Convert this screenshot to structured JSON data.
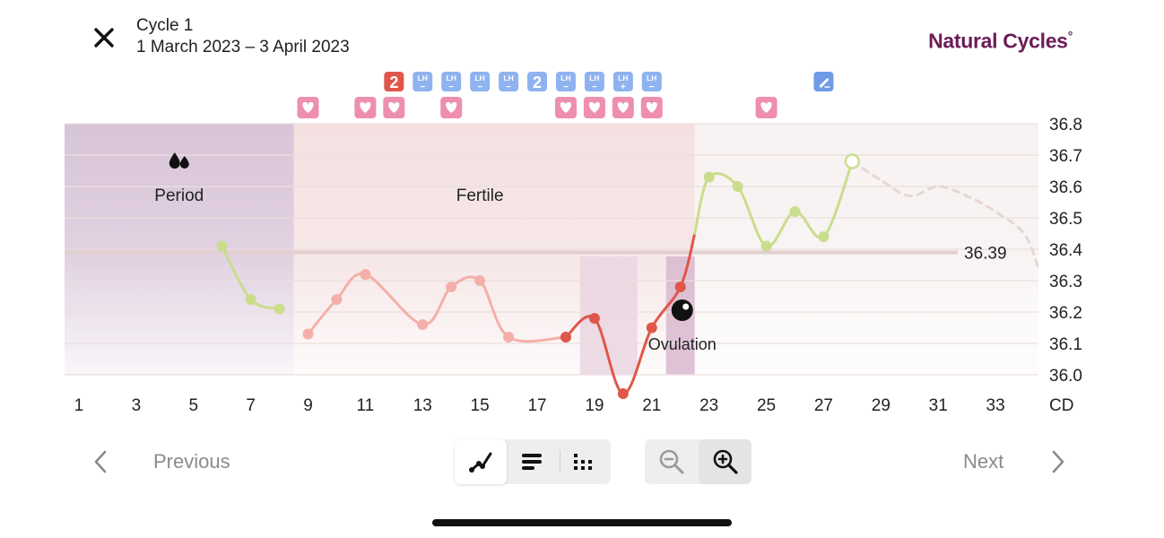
{
  "header": {
    "title": "Cycle 1",
    "dates": "1 March 2023 – 3 April 2023",
    "brand": "Natural Cycles",
    "brand_mark": "°",
    "close_icon": "close-icon"
  },
  "chart_data": {
    "type": "line",
    "x_label": "CD",
    "x_ticks": [
      "1",
      "3",
      "5",
      "7",
      "9",
      "11",
      "13",
      "15",
      "17",
      "19",
      "21",
      "23",
      "25",
      "27",
      "29",
      "31",
      "33"
    ],
    "y_ticks": [
      "36.8",
      "36.7",
      "36.6",
      "36.5",
      "36.4",
      "36.3",
      "36.2",
      "36.1",
      "36.0"
    ],
    "ylim": [
      36.0,
      36.8
    ],
    "xlim": [
      0.5,
      34.5
    ],
    "coverline": 36.39,
    "coverline_label": "36.39",
    "phases": [
      {
        "name": "Period",
        "label": "Period",
        "start": 0.5,
        "end": 8.5,
        "color": "#d8c4d8",
        "icon": "blood-drops-icon"
      },
      {
        "name": "Fertile",
        "label": "Fertile",
        "start": 8.5,
        "end": 22.5,
        "color": "#f4e0e0"
      },
      {
        "name": "Post",
        "label": "",
        "start": 22.5,
        "end": 34.5,
        "color": "#f7f1f1"
      }
    ],
    "ovulation": {
      "label": "Ovulation",
      "day": 21.5,
      "value": 36.2,
      "icon": "ovulation-egg-icon"
    },
    "ovulation_window": {
      "start": 18.5,
      "end": 20.5
    },
    "ovulation_day_band": {
      "start": 21.5,
      "end": 22.5
    },
    "series": [
      {
        "segment": "pre",
        "color": "#c9dd8c",
        "points": [
          [
            6,
            36.41
          ],
          [
            7,
            36.24
          ],
          [
            8,
            36.21
          ]
        ]
      },
      {
        "segment": "fertile",
        "color": "#f4b0a8",
        "points": [
          [
            9,
            36.13
          ],
          [
            10,
            36.24
          ],
          [
            11,
            36.32
          ],
          [
            13,
            36.16
          ],
          [
            14,
            36.28
          ],
          [
            15,
            36.3
          ],
          [
            16,
            36.12
          ],
          [
            18,
            36.12
          ]
        ]
      },
      {
        "segment": "ovulation",
        "color": "#e0564a",
        "points": [
          [
            18,
            36.12
          ],
          [
            19,
            36.18
          ],
          [
            20,
            35.94
          ],
          [
            21,
            36.15
          ],
          [
            22,
            36.28
          ],
          [
            22.5,
            36.45
          ]
        ]
      },
      {
        "segment": "luteal",
        "color": "#c9dd8c",
        "points": [
          [
            22.5,
            36.45
          ],
          [
            23,
            36.63
          ],
          [
            24,
            36.6
          ],
          [
            25,
            36.41
          ],
          [
            26,
            36.52
          ],
          [
            27,
            36.44
          ],
          [
            28,
            36.68
          ]
        ]
      },
      {
        "segment": "predicted",
        "color": "#e6d6d6",
        "dashed": true,
        "points": [
          [
            28,
            36.68
          ],
          [
            29,
            36.62
          ],
          [
            30,
            36.57
          ],
          [
            31,
            36.6
          ],
          [
            32,
            36.57
          ],
          [
            33,
            36.52
          ],
          [
            34,
            36.45
          ],
          [
            34.5,
            36.34
          ]
        ]
      }
    ],
    "today": {
      "day": 28,
      "value": 36.68
    },
    "markers_top": [
      {
        "day": 12,
        "type": "count",
        "label": "2",
        "color": "#e0564a"
      },
      {
        "day": 13,
        "type": "lh",
        "label": "LH",
        "sign": "−",
        "color": "#8fb3f0"
      },
      {
        "day": 14,
        "type": "lh",
        "label": "LH",
        "sign": "−",
        "color": "#8fb3f0"
      },
      {
        "day": 15,
        "type": "lh",
        "label": "LH",
        "sign": "−",
        "color": "#8fb3f0"
      },
      {
        "day": 16,
        "type": "lh",
        "label": "LH",
        "sign": "−",
        "color": "#8fb3f0"
      },
      {
        "day": 17,
        "type": "count",
        "label": "2",
        "color": "#8fb3f0"
      },
      {
        "day": 18,
        "type": "lh",
        "label": "LH",
        "sign": "−",
        "color": "#8fb3f0"
      },
      {
        "day": 19,
        "type": "lh",
        "label": "LH",
        "sign": "−",
        "color": "#8fb3f0"
      },
      {
        "day": 20,
        "type": "lh",
        "label": "LH",
        "sign": "+",
        "color": "#8fb3f0"
      },
      {
        "day": 21,
        "type": "lh",
        "label": "LH",
        "sign": "−",
        "color": "#8fb3f0"
      },
      {
        "day": 27,
        "type": "note",
        "label": "",
        "color": "#6f9ae6",
        "icon": "pencil-icon"
      }
    ],
    "markers_sex": [
      9,
      11,
      12,
      14,
      18,
      19,
      20,
      21,
      25
    ],
    "sex_marker_color": "#ee8fae",
    "sex_marker_icon": "heart-icon"
  },
  "navigation": {
    "previous_label": "Previous",
    "next_label": "Next",
    "prev_icon": "chevron-left-icon",
    "next_icon": "chevron-right-icon"
  },
  "view_controls": {
    "items": [
      {
        "name": "graph-view-icon",
        "active": true
      },
      {
        "name": "list-view-icon",
        "active": false
      },
      {
        "name": "dots-view-icon",
        "active": false
      }
    ]
  },
  "zoom_controls": {
    "items": [
      {
        "name": "zoom-out-icon",
        "active": false
      },
      {
        "name": "zoom-in-icon",
        "active": true
      }
    ]
  }
}
